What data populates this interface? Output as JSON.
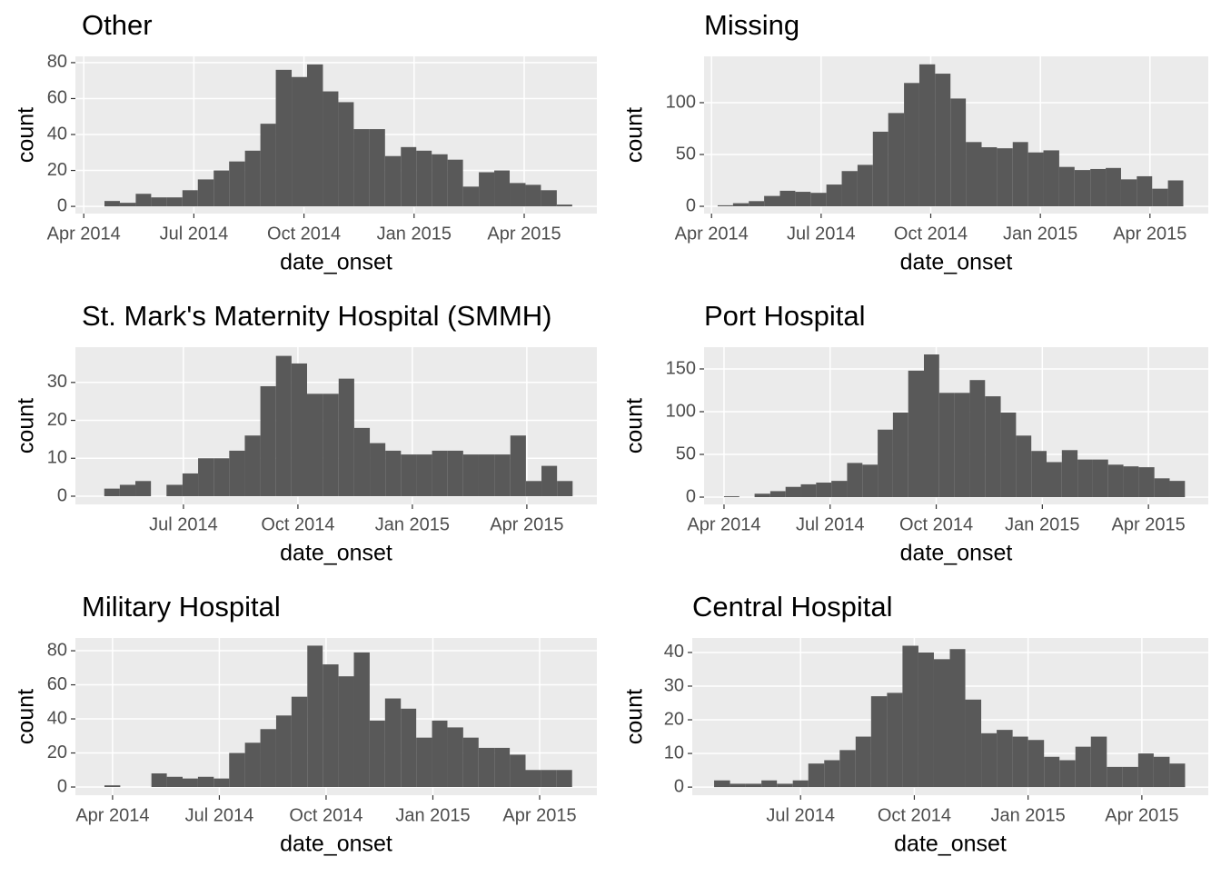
{
  "chart_data": [
    {
      "type": "histogram",
      "title": "Other",
      "xlabel": "date_onset",
      "ylabel": "count",
      "bins": [
        2014.297,
        2014.332,
        2014.368,
        2014.403,
        2014.439,
        2014.474,
        2014.509,
        2014.545,
        2014.58,
        2014.616,
        2014.651,
        2014.686,
        2014.722,
        2014.757,
        2014.793,
        2014.828,
        2014.863,
        2014.899,
        2014.934,
        2014.97,
        2015.005,
        2015.04,
        2015.076,
        2015.111,
        2015.147,
        2015.182,
        2015.217,
        2015.253,
        2015.288,
        2015.324,
        2015.359
      ],
      "counts": [
        3,
        2,
        7,
        5,
        5,
        9,
        15,
        20,
        25,
        31,
        46,
        76,
        72,
        79,
        64,
        58,
        43,
        43,
        28,
        33,
        31,
        29,
        26,
        11,
        19,
        20,
        13,
        12,
        9,
        1
      ],
      "color": "#595959",
      "xlim": [
        2014.231,
        2015.415
      ],
      "ylim": [
        -4,
        83.5
      ],
      "xticks": [
        {
          "value": 2014.25,
          "label": "Apr 2014"
        },
        {
          "value": 2014.5,
          "label": "Jul 2014"
        },
        {
          "value": 2014.75,
          "label": "Oct 2014"
        },
        {
          "value": 2015.0,
          "label": "Jan 2015"
        },
        {
          "value": 2015.25,
          "label": "Apr 2015"
        }
      ],
      "yticks": [
        0,
        20,
        40,
        60,
        80
      ],
      "grid": true
    },
    {
      "type": "histogram",
      "title": "Missing",
      "xlabel": "date_onset",
      "ylabel": "count",
      "bins": [
        2014.264,
        2014.299,
        2014.335,
        2014.37,
        2014.406,
        2014.441,
        2014.476,
        2014.512,
        2014.547,
        2014.583,
        2014.618,
        2014.653,
        2014.689,
        2014.724,
        2014.76,
        2014.795,
        2014.83,
        2014.866,
        2014.901,
        2014.937,
        2014.972,
        2015.007,
        2015.043,
        2015.078,
        2015.114,
        2015.149,
        2015.184,
        2015.22,
        2015.255,
        2015.291,
        2015.326
      ],
      "counts": [
        1,
        3,
        5,
        10,
        15,
        14,
        13,
        21,
        34,
        40,
        72,
        90,
        119,
        137,
        128,
        104,
        62,
        57,
        56,
        62,
        52,
        54,
        38,
        35,
        36,
        37,
        26,
        29,
        17,
        25
      ],
      "color": "#595959",
      "xlim": [
        2014.233,
        2015.383
      ],
      "ylim": [
        -7,
        144.7
      ],
      "xticks": [
        {
          "value": 2014.25,
          "label": "Apr 2014"
        },
        {
          "value": 2014.5,
          "label": "Jul 2014"
        },
        {
          "value": 2014.75,
          "label": "Oct 2014"
        },
        {
          "value": 2015.0,
          "label": "Jan 2015"
        },
        {
          "value": 2015.25,
          "label": "Apr 2015"
        }
      ],
      "yticks": [
        0,
        50,
        100
      ],
      "grid": true
    },
    {
      "type": "histogram",
      "title": "St. Mark's Maternity Hospital (SMMH)",
      "xlabel": "date_onset",
      "ylabel": "count",
      "bins": [
        2014.327,
        2014.361,
        2014.395,
        2014.429,
        2014.463,
        2014.498,
        2014.532,
        2014.566,
        2014.6,
        2014.634,
        2014.668,
        2014.702,
        2014.736,
        2014.77,
        2014.804,
        2014.839,
        2014.873,
        2014.907,
        2014.941,
        2014.975,
        2015.009,
        2015.043,
        2015.077,
        2015.111,
        2015.145,
        2015.18,
        2015.214,
        2015.248,
        2015.282,
        2015.316,
        2015.35
      ],
      "counts": [
        2,
        3,
        4,
        0,
        3,
        6,
        10,
        10,
        12,
        16,
        29,
        37,
        35,
        27,
        27,
        31,
        18,
        14,
        12,
        11,
        11,
        12,
        12,
        11,
        11,
        11,
        16,
        4,
        8,
        4
      ],
      "color": "#595959",
      "xlim": [
        2014.264,
        2015.403
      ],
      "ylim": [
        -2.16,
        39.3
      ],
      "xticks": [
        {
          "value": 2014.5,
          "label": "Jul 2014"
        },
        {
          "value": 2014.75,
          "label": "Oct 2014"
        },
        {
          "value": 2015.0,
          "label": "Jan 2015"
        },
        {
          "value": 2015.25,
          "label": "Apr 2015"
        }
      ],
      "yticks": [
        0,
        10,
        20,
        30
      ],
      "grid": true
    },
    {
      "type": "histogram",
      "title": "Port Hospital",
      "xlabel": "date_onset",
      "ylabel": "count",
      "bins": [
        2014.25,
        2014.286,
        2014.322,
        2014.359,
        2014.395,
        2014.431,
        2014.467,
        2014.503,
        2014.54,
        2014.576,
        2014.612,
        2014.648,
        2014.684,
        2014.721,
        2014.757,
        2014.793,
        2014.829,
        2014.865,
        2014.902,
        2014.938,
        2014.974,
        2015.01,
        2015.046,
        2015.083,
        2015.119,
        2015.155,
        2015.191,
        2015.227,
        2015.264,
        2015.3,
        2015.336
      ],
      "counts": [
        1,
        0,
        4,
        7,
        12,
        15,
        17,
        19,
        40,
        38,
        79,
        99,
        148,
        167,
        122,
        122,
        137,
        118,
        99,
        72,
        54,
        41,
        55,
        44,
        44,
        38,
        36,
        35,
        22,
        19
      ],
      "color": "#595959",
      "xlim": [
        2014.203,
        2015.391
      ],
      "ylim": [
        -8.5,
        175.5
      ],
      "xticks": [
        {
          "value": 2014.25,
          "label": "Apr 2014"
        },
        {
          "value": 2014.5,
          "label": "Jul 2014"
        },
        {
          "value": 2014.75,
          "label": "Oct 2014"
        },
        {
          "value": 2015.0,
          "label": "Jan 2015"
        },
        {
          "value": 2015.25,
          "label": "Apr 2015"
        }
      ],
      "yticks": [
        0,
        50,
        100,
        150
      ],
      "grid": true
    },
    {
      "type": "histogram",
      "title": "Military Hospital",
      "xlabel": "date_onset",
      "ylabel": "count",
      "bins": [
        2014.231,
        2014.268,
        2014.304,
        2014.341,
        2014.377,
        2014.414,
        2014.45,
        2014.487,
        2014.523,
        2014.56,
        2014.596,
        2014.633,
        2014.669,
        2014.706,
        2014.742,
        2014.779,
        2014.815,
        2014.852,
        2014.888,
        2014.925,
        2014.961,
        2014.998,
        2015.034,
        2015.071,
        2015.107,
        2015.144,
        2015.18,
        2015.217,
        2015.253,
        2015.29,
        2015.326
      ],
      "counts": [
        1,
        0,
        0,
        8,
        6,
        5,
        6,
        5,
        20,
        26,
        34,
        42,
        53,
        83,
        72,
        65,
        79,
        39,
        52,
        46,
        29,
        39,
        35,
        29,
        23,
        23,
        19,
        10,
        10,
        10
      ],
      "color": "#595959",
      "xlim": [
        2014.163,
        2015.384
      ],
      "ylim": [
        -4.8,
        87.5
      ],
      "xticks": [
        {
          "value": 2014.25,
          "label": "Apr 2014"
        },
        {
          "value": 2014.5,
          "label": "Jul 2014"
        },
        {
          "value": 2014.75,
          "label": "Oct 2014"
        },
        {
          "value": 2015.0,
          "label": "Jan 2015"
        },
        {
          "value": 2015.25,
          "label": "Apr 2015"
        }
      ],
      "yticks": [
        0,
        20,
        40,
        60,
        80
      ],
      "grid": true
    },
    {
      "type": "histogram",
      "title": "Central Hospital",
      "xlabel": "date_onset",
      "ylabel": "count",
      "bins": [
        2014.31,
        2014.345,
        2014.379,
        2014.414,
        2014.448,
        2014.483,
        2014.517,
        2014.552,
        2014.586,
        2014.621,
        2014.655,
        2014.69,
        2014.724,
        2014.759,
        2014.793,
        2014.828,
        2014.862,
        2014.897,
        2014.931,
        2014.966,
        2015.0,
        2015.035,
        2015.069,
        2015.104,
        2015.138,
        2015.173,
        2015.207,
        2015.242,
        2015.276,
        2015.311,
        2015.345
      ],
      "counts": [
        2,
        1,
        1,
        2,
        1,
        2,
        7,
        8,
        11,
        15,
        27,
        28,
        42,
        40,
        38,
        41,
        26,
        16,
        17,
        15,
        14,
        9,
        8,
        12,
        15,
        6,
        6,
        10,
        9,
        7
      ],
      "color": "#595959",
      "xlim": [
        2014.262,
        2015.396
      ],
      "ylim": [
        -2.4,
        44.3
      ],
      "xticks": [
        {
          "value": 2014.5,
          "label": "Jul 2014"
        },
        {
          "value": 2014.75,
          "label": "Oct 2014"
        },
        {
          "value": 2015.0,
          "label": "Jan 2015"
        },
        {
          "value": 2015.25,
          "label": "Apr 2015"
        }
      ],
      "yticks": [
        0,
        10,
        20,
        30,
        40
      ],
      "grid": true
    }
  ]
}
